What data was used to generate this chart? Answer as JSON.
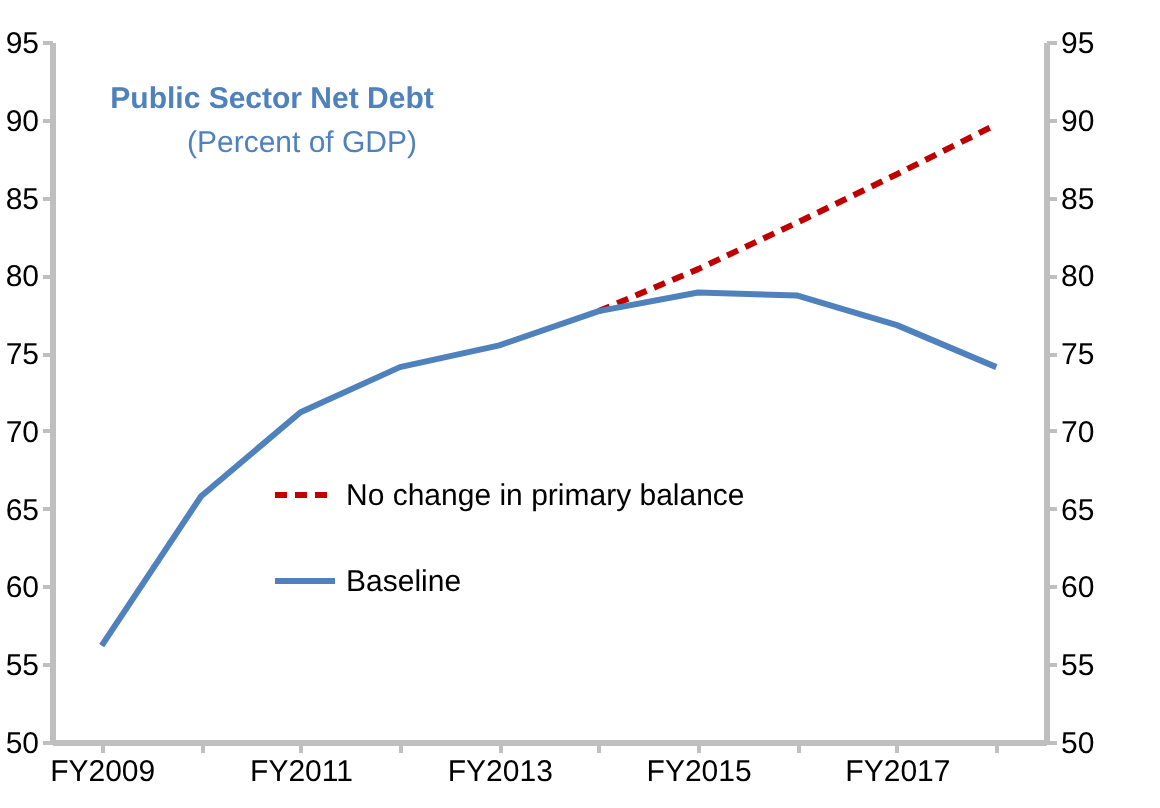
{
  "chart_data": {
    "type": "line",
    "title": "Public Sector Net Debt",
    "subtitle": "(Percent of GDP)",
    "categories": [
      "FY2009",
      null,
      "FY2011",
      null,
      "FY2013",
      null,
      "FY2015",
      null,
      "FY2017",
      null
    ],
    "series": [
      {
        "name": "No change in primary balance",
        "color": "#c00000",
        "line_style": "dashed",
        "values": [
          null,
          null,
          null,
          null,
          null,
          77.7,
          80.4,
          83.4,
          86.5,
          89.7
        ]
      },
      {
        "name": "Baseline",
        "color": "#4f81bd",
        "line_style": "solid",
        "values": [
          56.2,
          65.8,
          71.2,
          74.1,
          75.5,
          77.7,
          78.9,
          78.7,
          76.8,
          74.1
        ]
      }
    ],
    "ylim": [
      50,
      95
    ],
    "yticks": [
      50,
      55,
      60,
      65,
      70,
      75,
      80,
      85,
      90,
      95
    ],
    "y2lim": [
      50,
      95
    ],
    "y2ticks": [
      50,
      55,
      60,
      65,
      70,
      75,
      80,
      85,
      90,
      95
    ],
    "grid": false,
    "legend": "bottom",
    "marker": "none"
  }
}
